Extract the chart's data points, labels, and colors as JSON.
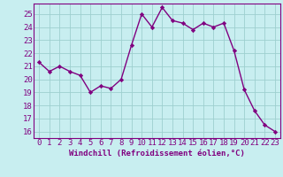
{
  "x": [
    0,
    1,
    2,
    3,
    4,
    5,
    6,
    7,
    8,
    9,
    10,
    11,
    12,
    13,
    14,
    15,
    16,
    17,
    18,
    19,
    20,
    21,
    22,
    23
  ],
  "y": [
    21.3,
    20.6,
    21.0,
    20.6,
    20.3,
    19.0,
    19.5,
    19.3,
    20.0,
    22.6,
    25.0,
    24.0,
    25.5,
    24.5,
    24.3,
    23.8,
    24.3,
    24.0,
    24.3,
    22.2,
    19.2,
    17.6,
    16.5,
    16.0
  ],
  "line_color": "#800080",
  "marker": "D",
  "marker_size": 2.2,
  "bg_color": "#c8eef0",
  "grid_color": "#9ecfcf",
  "xlabel": "Windchill (Refroidissement éolien,°C)",
  "ylabel_ticks": [
    16,
    17,
    18,
    19,
    20,
    21,
    22,
    23,
    24,
    25
  ],
  "ylim": [
    15.5,
    25.8
  ],
  "xlim": [
    -0.5,
    23.5
  ],
  "xlabel_fontsize": 6.5,
  "tick_fontsize": 6.5,
  "line_width": 1.0
}
